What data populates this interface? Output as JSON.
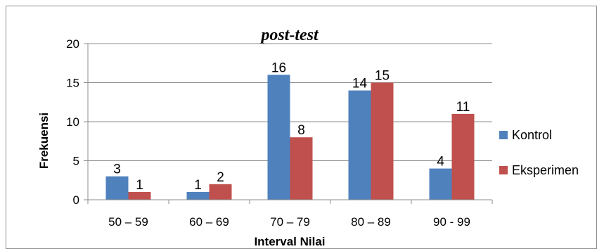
{
  "chart_data": {
    "type": "bar",
    "title": "post-test",
    "xlabel": "Interval Nilai",
    "ylabel": "Frekuensi",
    "ylim": [
      0,
      20
    ],
    "yticks": [
      "0",
      "5",
      "10",
      "15",
      "20"
    ],
    "grid": true,
    "legend": "right",
    "categories": [
      "50 – 59",
      "60 – 69",
      "70 – 79",
      "80 – 89",
      "90 - 99"
    ],
    "series": [
      {
        "name": "Kontrol",
        "color": "#4f81bd",
        "values": [
          3,
          1,
          16,
          14,
          4
        ]
      },
      {
        "name": "Eksperimen",
        "color": "#c0504d",
        "values": [
          1,
          2,
          8,
          15,
          11
        ]
      }
    ]
  }
}
